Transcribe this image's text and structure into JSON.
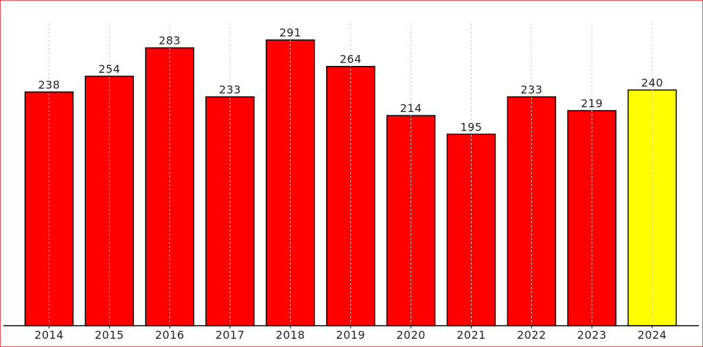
{
  "chart_data": {
    "type": "bar",
    "categories": [
      "2014",
      "2015",
      "2016",
      "2017",
      "2018",
      "2019",
      "2020",
      "2021",
      "2022",
      "2023",
      "2024"
    ],
    "values": [
      238,
      254,
      283,
      233,
      291,
      264,
      214,
      195,
      233,
      219,
      240
    ],
    "title": "",
    "xlabel": "",
    "ylabel": "",
    "ylim": [
      0,
      310
    ],
    "grid": "vertical-dashed",
    "legend": "none",
    "colors": {
      "default_bar": "#ff0000",
      "highlight_bar": "#ffff00",
      "highlight_category": "2024",
      "bar_edge": "#000000",
      "grid": "#c8c8c8",
      "frame": "#e84b4b"
    }
  }
}
